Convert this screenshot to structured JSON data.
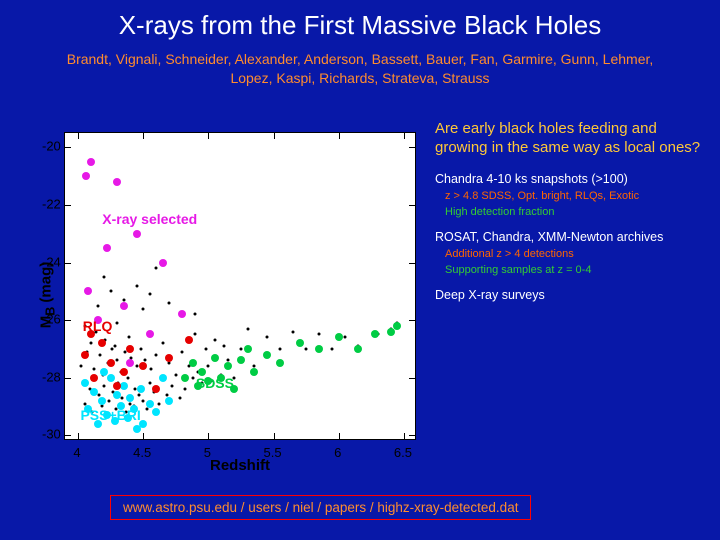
{
  "background_color": "#0818a8",
  "title": {
    "text": "X-rays from the First Massive Black Holes",
    "color": "#ffffff",
    "fontsize": 26
  },
  "authors": {
    "text": "Brandt, Vignali, Schneider, Alexander, Anderson, Bassett, Bauer, Fan, Garmire, Gunn, Lehmer, Lopez, Kaspi, Richards, Strateva, Strauss",
    "color": "#ff8c2e",
    "fontsize": 14
  },
  "side": {
    "heading": {
      "text": "Are early black holes feeding and growing in the same way as local ones?",
      "color": "#ffc838"
    },
    "items": [
      {
        "main": "Chandra 4-10 ks snapshots (>100)",
        "color": "#ffffff",
        "subs": [
          {
            "text": "z > 4.8 SDSS, Opt. bright, RLQs, Exotic",
            "color": "#ff6600"
          },
          {
            "text": "High detection fraction",
            "color": "#33cc33"
          }
        ]
      },
      {
        "main": "ROSAT, Chandra, XMM-Newton archives",
        "color": "#ffffff",
        "subs": [
          {
            "text": "Additional z > 4 detections",
            "color": "#ff6600"
          },
          {
            "text": "Supporting samples at z = 0-4",
            "color": "#33cc33"
          }
        ]
      },
      {
        "main": "Deep X-ray surveys",
        "color": "#ffffff",
        "subs": []
      }
    ]
  },
  "source_url": {
    "text": "www.astro.psu.edu / users / niel / papers / highz-xray-detected.dat",
    "color": "#ff8c2e",
    "border_color": "#ff0000"
  },
  "chart": {
    "type": "scatter",
    "plot_bg": "#ffffff",
    "axis_color": "#000000",
    "xaxis": {
      "label": "Redshift",
      "fontsize": 15,
      "lim": [
        3.9,
        6.6
      ],
      "ticks": [
        4,
        4.5,
        5,
        5.5,
        6,
        6.5
      ]
    },
    "yaxis": {
      "label": "M_B (mag)",
      "fontsize": 15,
      "lim": [
        -19.5,
        -30.2
      ],
      "ticks": [
        -20,
        -22,
        -24,
        -26,
        -28,
        -30
      ],
      "inverted": true
    },
    "series_labels": [
      {
        "text": "PSS+BRI",
        "color": "#00e5ff",
        "x": 4.25,
        "y": -29.3
      },
      {
        "text": "SDSS",
        "color": "#00cc44",
        "x": 5.05,
        "y": -28.2
      },
      {
        "text": "RLQ",
        "color": "#e60000",
        "x": 4.15,
        "y": -26.2
      },
      {
        "text": "X-ray selected",
        "color": "#e619e6",
        "x": 4.55,
        "y": -22.5
      }
    ],
    "series": [
      {
        "name": "black",
        "color": "#000000",
        "size": 3,
        "points": [
          [
            4.02,
            -27.6
          ],
          [
            4.05,
            -28.9
          ],
          [
            4.07,
            -27.1
          ],
          [
            4.09,
            -28.4
          ],
          [
            4.1,
            -26.8
          ],
          [
            4.11,
            -29.2
          ],
          [
            4.12,
            -27.7
          ],
          [
            4.13,
            -28.0
          ],
          [
            4.14,
            -26.4
          ],
          [
            4.16,
            -28.6
          ],
          [
            4.17,
            -27.2
          ],
          [
            4.18,
            -29.0
          ],
          [
            4.19,
            -27.9
          ],
          [
            4.2,
            -28.3
          ],
          [
            4.21,
            -26.7
          ],
          [
            4.22,
            -29.3
          ],
          [
            4.23,
            -27.5
          ],
          [
            4.24,
            -28.8
          ],
          [
            4.26,
            -27.0
          ],
          [
            4.27,
            -28.5
          ],
          [
            4.28,
            -26.9
          ],
          [
            4.29,
            -29.1
          ],
          [
            4.3,
            -27.4
          ],
          [
            4.31,
            -28.2
          ],
          [
            4.33,
            -27.8
          ],
          [
            4.34,
            -28.7
          ],
          [
            4.36,
            -27.1
          ],
          [
            4.37,
            -29.2
          ],
          [
            4.38,
            -28.0
          ],
          [
            4.39,
            -26.6
          ],
          [
            4.4,
            -28.9
          ],
          [
            4.41,
            -27.3
          ],
          [
            4.43,
            -29.0
          ],
          [
            4.44,
            -28.4
          ],
          [
            4.45,
            -27.6
          ],
          [
            4.47,
            -28.6
          ],
          [
            4.48,
            -27.0
          ],
          [
            4.5,
            -28.8
          ],
          [
            4.51,
            -27.4
          ],
          [
            4.53,
            -29.1
          ],
          [
            4.55,
            -28.2
          ],
          [
            4.56,
            -27.7
          ],
          [
            4.58,
            -28.5
          ],
          [
            4.6,
            -27.2
          ],
          [
            4.62,
            -28.9
          ],
          [
            4.64,
            -28.0
          ],
          [
            4.65,
            -26.8
          ],
          [
            4.68,
            -28.6
          ],
          [
            4.7,
            -27.5
          ],
          [
            4.72,
            -28.3
          ],
          [
            4.75,
            -27.9
          ],
          [
            4.78,
            -28.7
          ],
          [
            4.8,
            -27.1
          ],
          [
            4.82,
            -28.4
          ],
          [
            4.85,
            -27.6
          ],
          [
            4.88,
            -28.0
          ],
          [
            4.9,
            -26.5
          ],
          [
            4.92,
            -27.8
          ],
          [
            4.95,
            -28.2
          ],
          [
            4.98,
            -27.0
          ],
          [
            5.0,
            -27.6
          ],
          [
            5.02,
            -28.1
          ],
          [
            5.05,
            -26.7
          ],
          [
            5.1,
            -27.9
          ],
          [
            5.12,
            -26.9
          ],
          [
            5.15,
            -27.4
          ],
          [
            5.2,
            -28.0
          ],
          [
            5.25,
            -27.0
          ],
          [
            5.3,
            -26.3
          ],
          [
            5.35,
            -27.6
          ],
          [
            5.45,
            -26.6
          ],
          [
            5.55,
            -27.0
          ],
          [
            5.65,
            -26.4
          ],
          [
            5.75,
            -27.0
          ],
          [
            5.85,
            -26.5
          ],
          [
            5.95,
            -27.0
          ],
          [
            6.05,
            -26.6
          ],
          [
            6.15,
            -26.9
          ],
          [
            6.3,
            -26.5
          ],
          [
            6.4,
            -26.3
          ],
          [
            6.45,
            -26.1
          ],
          [
            4.15,
            -25.5
          ],
          [
            4.25,
            -25.0
          ],
          [
            4.35,
            -25.3
          ],
          [
            4.45,
            -24.8
          ],
          [
            4.55,
            -25.1
          ],
          [
            4.05,
            -26.2
          ],
          [
            4.3,
            -26.1
          ],
          [
            4.5,
            -25.6
          ],
          [
            4.7,
            -25.4
          ],
          [
            4.9,
            -25.8
          ],
          [
            4.2,
            -24.5
          ],
          [
            4.6,
            -24.2
          ]
        ]
      },
      {
        "name": "cyan",
        "color": "#00e5ff",
        "size": 8,
        "points": [
          [
            4.08,
            -29.1
          ],
          [
            4.12,
            -28.5
          ],
          [
            4.15,
            -29.6
          ],
          [
            4.18,
            -28.8
          ],
          [
            4.22,
            -29.3
          ],
          [
            4.25,
            -28.0
          ],
          [
            4.28,
            -29.5
          ],
          [
            4.3,
            -28.6
          ],
          [
            4.33,
            -29.0
          ],
          [
            4.35,
            -28.3
          ],
          [
            4.38,
            -29.4
          ],
          [
            4.4,
            -28.7
          ],
          [
            4.43,
            -29.1
          ],
          [
            4.48,
            -28.4
          ],
          [
            4.5,
            -29.6
          ],
          [
            4.55,
            -28.9
          ],
          [
            4.6,
            -29.2
          ],
          [
            4.65,
            -28.0
          ],
          [
            4.7,
            -28.8
          ],
          [
            4.05,
            -28.2
          ],
          [
            4.2,
            -27.8
          ],
          [
            4.45,
            -29.8
          ]
        ]
      },
      {
        "name": "green",
        "color": "#00cc44",
        "size": 8,
        "points": [
          [
            4.82,
            -28.0
          ],
          [
            4.88,
            -27.5
          ],
          [
            4.92,
            -28.3
          ],
          [
            4.95,
            -27.8
          ],
          [
            5.0,
            -28.1
          ],
          [
            5.05,
            -27.3
          ],
          [
            5.1,
            -28.0
          ],
          [
            5.15,
            -27.6
          ],
          [
            5.2,
            -28.4
          ],
          [
            5.25,
            -27.4
          ],
          [
            5.3,
            -27.0
          ],
          [
            5.35,
            -27.8
          ],
          [
            5.45,
            -27.2
          ],
          [
            5.55,
            -27.5
          ],
          [
            5.7,
            -26.8
          ],
          [
            5.85,
            -27.0
          ],
          [
            6.0,
            -26.6
          ],
          [
            6.15,
            -27.0
          ],
          [
            6.28,
            -26.5
          ],
          [
            6.4,
            -26.4
          ],
          [
            6.45,
            -26.2
          ]
        ]
      },
      {
        "name": "red",
        "color": "#e60000",
        "size": 8,
        "points": [
          [
            4.05,
            -27.2
          ],
          [
            4.12,
            -28.0
          ],
          [
            4.18,
            -26.8
          ],
          [
            4.25,
            -27.5
          ],
          [
            4.3,
            -28.3
          ],
          [
            4.35,
            -27.8
          ],
          [
            4.4,
            -27.0
          ],
          [
            4.5,
            -27.6
          ],
          [
            4.6,
            -28.4
          ],
          [
            4.7,
            -27.3
          ],
          [
            4.85,
            -26.7
          ],
          [
            4.1,
            -26.5
          ]
        ]
      },
      {
        "name": "magenta",
        "color": "#e619e6",
        "size": 8,
        "points": [
          [
            4.06,
            -21.0
          ],
          [
            4.1,
            -20.5
          ],
          [
            4.15,
            -26.0
          ],
          [
            4.22,
            -23.5
          ],
          [
            4.3,
            -21.2
          ],
          [
            4.35,
            -25.5
          ],
          [
            4.45,
            -23.0
          ],
          [
            4.55,
            -26.5
          ],
          [
            4.65,
            -24.0
          ],
          [
            4.4,
            -27.5
          ],
          [
            4.8,
            -25.8
          ],
          [
            4.08,
            -25.0
          ]
        ]
      }
    ]
  }
}
